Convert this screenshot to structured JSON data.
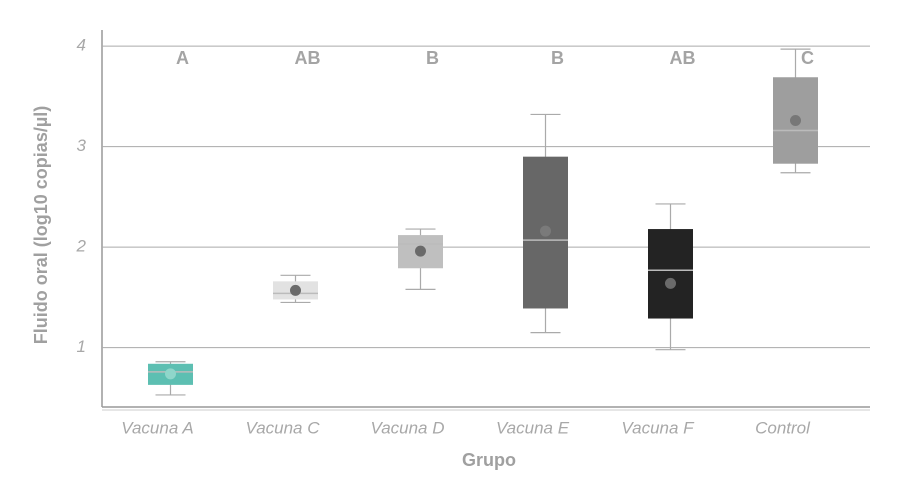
{
  "chart_data": {
    "type": "box",
    "x_label": "Grupo",
    "y_label": "Fluido oral (log10 copias/µl)",
    "categories": [
      "Vacuna A",
      "Vacuna C",
      "Vacuna D",
      "Vacuna E",
      "Vacuna F",
      "Control"
    ],
    "group_letters": [
      "A",
      "AB",
      "B",
      "B",
      "AB",
      "C"
    ],
    "low": [
      0.53,
      1.45,
      1.58,
      1.15,
      0.98,
      2.74
    ],
    "q1": [
      0.63,
      1.48,
      1.79,
      1.39,
      1.29,
      2.83
    ],
    "median": [
      0.76,
      1.54,
      2.03,
      2.07,
      1.77,
      3.16
    ],
    "q3": [
      0.84,
      1.66,
      2.12,
      2.9,
      2.18,
      3.69
    ],
    "high": [
      0.86,
      1.72,
      2.18,
      3.32,
      2.43,
      3.97
    ],
    "mean": [
      0.74,
      1.57,
      1.96,
      2.16,
      1.64,
      3.26
    ],
    "colors": [
      "#5dbfb2",
      "#e2e2e2",
      "#bfbfbf",
      "#676767",
      "#232323",
      "#9e9e9e"
    ],
    "mean_colors": [
      "#8fd6ca",
      "#6a6a6a",
      "#6a6a6a",
      "#7a7a7a",
      "#6a6a6a",
      "#777777"
    ],
    "ylim": [
      0.41,
      4.16
    ],
    "yticks": [
      1,
      2,
      3,
      4
    ],
    "grid": true
  }
}
